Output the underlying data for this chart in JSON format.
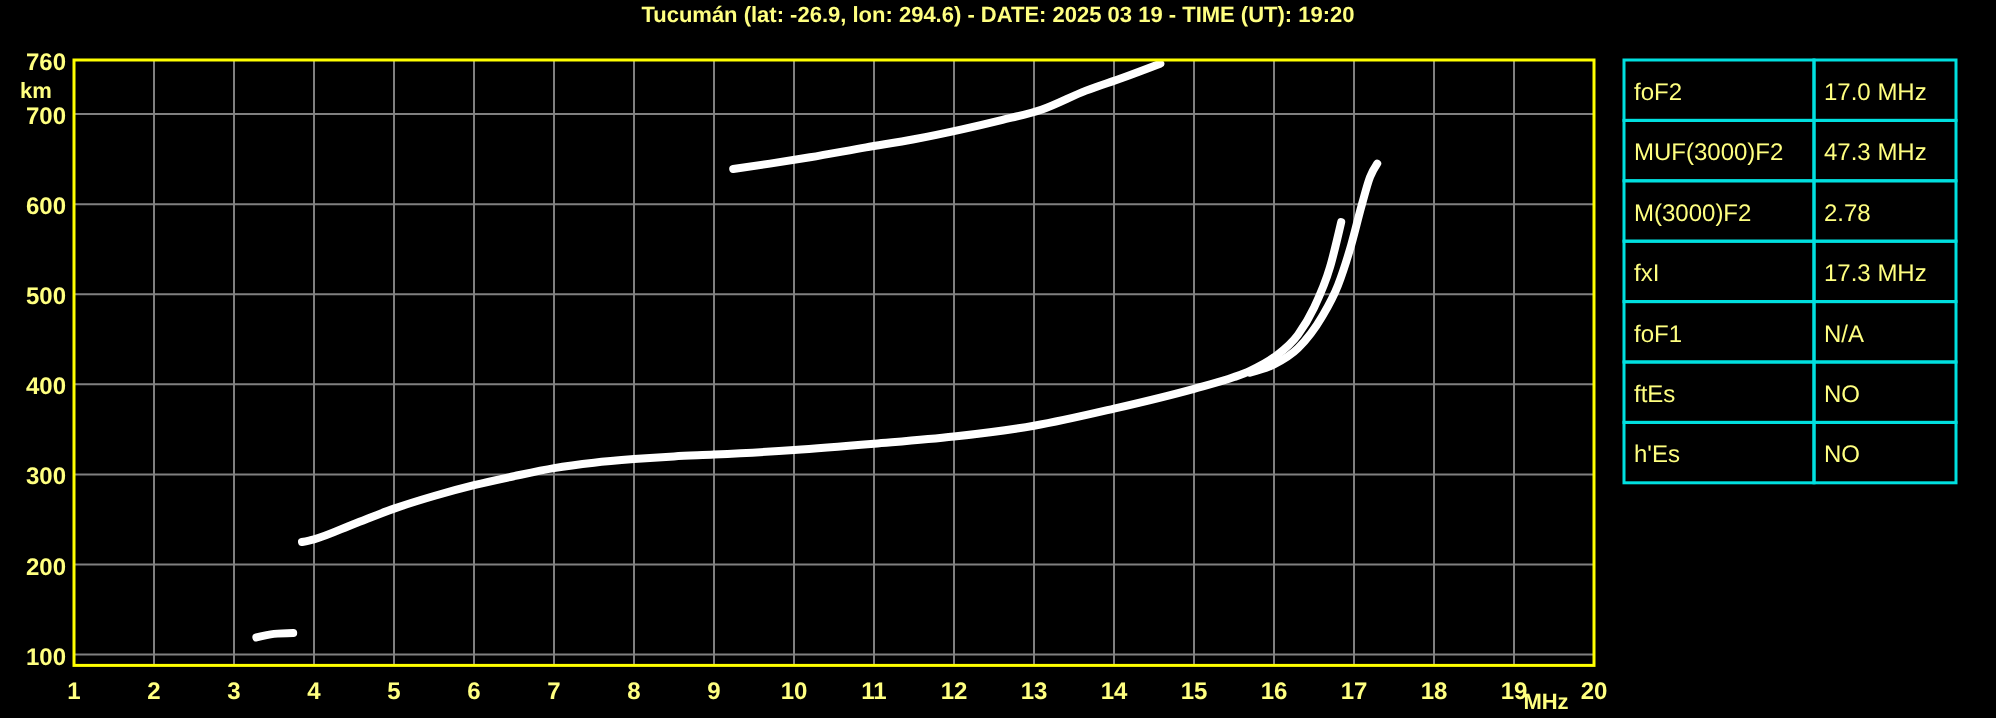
{
  "chart_data": [
    {
      "type": "line",
      "title": "Tucumán (lat: -26.9, lon: 294.6) - DATE: 2025 03 19 - TIME (UT): 19:20",
      "xlabel": "MHz",
      "ylabel": "km",
      "xlim": [
        1,
        20
      ],
      "xticks": [
        1,
        2,
        3,
        4,
        5,
        6,
        7,
        8,
        9,
        10,
        11,
        12,
        13,
        14,
        15,
        16,
        17,
        18,
        19,
        20
      ],
      "ylim": [
        88,
        760
      ],
      "yticks": [
        100,
        200,
        300,
        400,
        500,
        600,
        700,
        760
      ],
      "grid": true,
      "marker": "none",
      "line_style": "solid",
      "series": [
        {
          "color": "#ffffff",
          "x": [
            3.85,
            4.0,
            4.5,
            5.0,
            5.5,
            6.0,
            6.5,
            7.0,
            7.5,
            8.0,
            8.5,
            9.0,
            10.0,
            11.0,
            12.0,
            13.0,
            14.0,
            15.0,
            15.5,
            15.7,
            16.0,
            16.3,
            16.5,
            16.7,
            16.84
          ],
          "values": [
            225,
            228,
            245,
            262,
            276,
            288,
            298,
            307,
            313,
            317,
            320,
            322,
            327,
            334,
            342,
            354,
            373,
            395,
            408,
            415,
            430,
            455,
            485,
            530,
            580
          ]
        },
        {
          "color": "#ffffff",
          "x": [
            15.7,
            16.0,
            16.3,
            16.6,
            16.8,
            16.95,
            17.1,
            17.2,
            17.29
          ],
          "values": [
            413,
            422,
            440,
            475,
            510,
            550,
            600,
            630,
            645
          ]
        },
        {
          "color": "#ffffff",
          "x": [
            9.24,
            9.7,
            10.2,
            10.9,
            11.5,
            12.1,
            12.58,
            13.1,
            13.65,
            14.1,
            14.58
          ],
          "values": [
            639,
            645,
            652,
            663,
            672,
            683,
            693,
            705,
            726,
            740,
            756
          ]
        },
        {
          "color": "#ffffff",
          "x": [
            3.28,
            3.5,
            3.74
          ],
          "values": [
            119,
            123,
            124
          ]
        }
      ]
    },
    {
      "type": "other",
      "categories": [
        "foF2",
        "MUF(3000)F2",
        "M(3000)F2",
        "fxI",
        "foF1",
        "ftEs",
        "h'Es"
      ],
      "value_labels": [
        "17.0 MHz",
        "47.3 MHz",
        "2.78",
        "17.3 MHz",
        "N/A",
        "NO",
        "NO"
      ]
    }
  ]
}
